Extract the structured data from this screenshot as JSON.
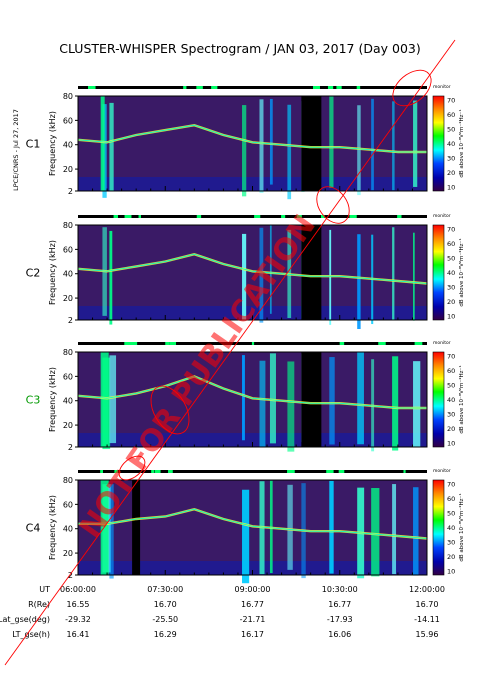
{
  "title": "CLUSTER-WHISPER Spectrogram / JAN 03, 2017 (Day 003)",
  "side_label": "LPCE/CNRS - Jul 27, 2017",
  "watermark": "NOT FOR PUBLICATION",
  "colorbar": {
    "ticks": [
      "70",
      "60",
      "50",
      "40",
      "30",
      "20",
      "10"
    ],
    "label": "dB above 10⁻⁸V²m⁻²Hz⁻¹",
    "top_label": "monitor",
    "colors": [
      "#ff0000",
      "#ff8800",
      "#ffff00",
      "#00ff00",
      "#00ffff",
      "#0044ff",
      "#0000aa",
      "#330044"
    ]
  },
  "chart_data": {
    "type": "heatmap",
    "title": "CLUSTER-WHISPER Spectrogram / JAN 03, 2017 (Day 003)",
    "ylabel": "Frequency (kHz)",
    "ylim": [
      2,
      80
    ],
    "yticks": [
      "80",
      "60",
      "40",
      "20",
      "2"
    ],
    "xlim": [
      "06:00:00",
      "12:00:00"
    ],
    "panels": [
      {
        "name": "C1",
        "color": "#000000",
        "line_mean_khz": [
          44,
          42,
          48,
          52,
          56,
          48,
          42,
          40,
          38,
          38,
          36,
          34,
          34
        ]
      },
      {
        "name": "C2",
        "color": "#000000",
        "line_mean_khz": [
          44,
          42,
          46,
          50,
          56,
          48,
          42,
          40,
          38,
          38,
          36,
          34,
          32
        ]
      },
      {
        "name": "C3",
        "color": "#009900",
        "line_mean_khz": [
          44,
          42,
          46,
          52,
          60,
          50,
          42,
          40,
          38,
          38,
          36,
          34,
          34
        ]
      },
      {
        "name": "C4",
        "color": "#000000",
        "line_mean_khz": [
          44,
          44,
          48,
          50,
          56,
          48,
          42,
          40,
          38,
          38,
          36,
          34,
          32
        ]
      }
    ],
    "orbit_table": {
      "rows": [
        {
          "label": "UT",
          "values": [
            "06:00:00",
            "07:30:00",
            "09:00:00",
            "10:30:00",
            "12:00:00"
          ]
        },
        {
          "label": "R(Re)",
          "values": [
            "16.55",
            "16.70",
            "16.77",
            "16.77",
            "16.70"
          ]
        },
        {
          "label": "Lat_gse(deg)",
          "values": [
            "-29.32",
            "-25.50",
            "-21.71",
            "-17.93",
            "-14.11"
          ]
        },
        {
          "label": "LT_gse(h)",
          "values": [
            "16.41",
            "16.29",
            "16.17",
            "16.06",
            "15.96"
          ]
        }
      ]
    }
  }
}
